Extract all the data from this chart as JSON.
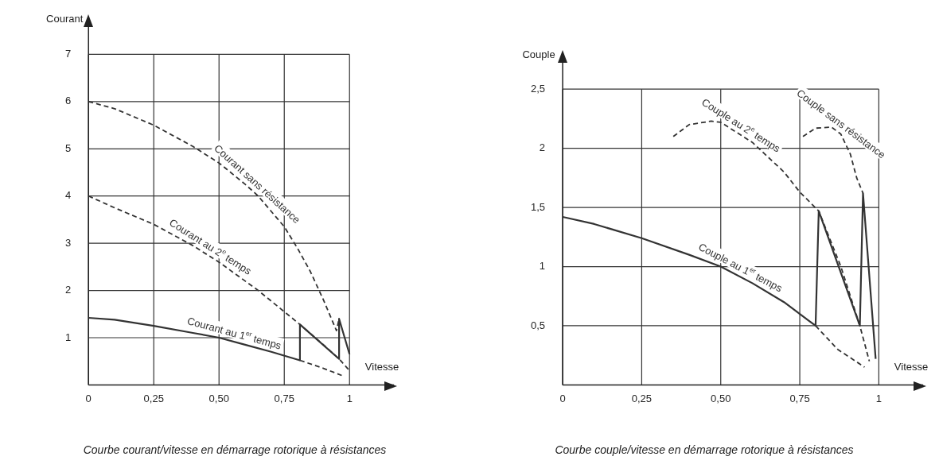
{
  "chart_data": [
    {
      "type": "line",
      "title": "Courbe courant/vitesse en démarrage rotorique à résistances",
      "xlabel": "Vitesse",
      "ylabel": "Courant",
      "xlim": [
        0,
        1.17
      ],
      "ylim": [
        0,
        7.65
      ],
      "xticks": [
        {
          "value": 0,
          "label": "0"
        },
        {
          "value": 0.25,
          "label": "0,25"
        },
        {
          "value": 0.5,
          "label": "0,50"
        },
        {
          "value": 0.75,
          "label": "0,75"
        },
        {
          "value": 1,
          "label": "1"
        }
      ],
      "yticks": [
        1,
        2,
        3,
        4,
        5,
        6,
        7
      ],
      "grid": true,
      "legend": false,
      "marker": "none",
      "series": [
        {
          "name": "Courant sans résistance",
          "color": "#333333",
          "line_style": "dashed",
          "x": [
            0,
            0.1,
            0.25,
            0.4,
            0.5,
            0.6,
            0.65,
            0.75,
            0.8,
            0.85,
            0.9,
            0.95,
            0.96
          ],
          "values": [
            6,
            5.85,
            5.5,
            5.05,
            4.7,
            4.25,
            4.0,
            3.35,
            2.9,
            2.4,
            1.8,
            1.15,
            1.4
          ]
        },
        {
          "name": "Courant au 2$^{e}$ temps",
          "color": "#333333",
          "line_style": "dashed",
          "x": [
            0,
            0.1,
            0.25,
            0.4,
            0.5,
            0.65,
            0.75,
            0.81,
            0.9,
            0.96,
            1
          ],
          "values": [
            4,
            3.75,
            3.4,
            2.95,
            2.6,
            2.0,
            1.55,
            1.28,
            0.85,
            0.55,
            0.3
          ]
        },
        {
          "name": "Courant au 1$^{er}$ temps",
          "color": "#333333",
          "line_style": "solid",
          "x": [
            0,
            0.1,
            0.25,
            0.4,
            0.5,
            0.6,
            0.7,
            0.81,
            0.81,
            0.96,
            0.96,
            1
          ],
          "values": [
            1.42,
            1.38,
            1.25,
            1.1,
            1.0,
            0.85,
            0.7,
            0.52,
            1.28,
            0.55,
            1.4,
            0.65
          ]
        },
        {
          "color": "#333333",
          "line_style": "dashed",
          "x": [
            0.81,
            0.9,
            0.97
          ],
          "values": [
            0.52,
            0.35,
            0.2
          ]
        }
      ]
    },
    {
      "type": "line",
      "title": "Courbe couple/vitesse en démarrage rotorique à résistances",
      "xlabel": "Vitesse",
      "ylabel": "Couple",
      "xlim": [
        0,
        1.14
      ],
      "ylim": [
        0,
        2.75
      ],
      "xticks": [
        {
          "value": 0,
          "label": "0"
        },
        {
          "value": 0.25,
          "label": "0,25"
        },
        {
          "value": 0.5,
          "label": "0,50"
        },
        {
          "value": 0.75,
          "label": "0,75"
        },
        {
          "value": 1,
          "label": "1"
        }
      ],
      "yticks": [
        {
          "value": 0.5,
          "label": "0,5"
        },
        1,
        {
          "value": 1.5,
          "label": "1,5"
        },
        2,
        {
          "value": 2.5,
          "label": "2,5"
        }
      ],
      "grid": true,
      "legend": false,
      "marker": "none",
      "series": [
        {
          "name": "Couple au 2$^{e}$ temps",
          "color": "#333333",
          "line_style": "dashed",
          "x": [
            0.35,
            0.4,
            0.47,
            0.5,
            0.6,
            0.7,
            0.75,
            0.81,
            0.88,
            0.94,
            0.97
          ],
          "values": [
            2.1,
            2.2,
            2.23,
            2.22,
            2.05,
            1.8,
            1.63,
            1.47,
            1.0,
            0.5,
            0.2
          ]
        },
        {
          "name": "Couple sans résistance",
          "color": "#333333",
          "line_style": "dashed",
          "x": [
            0.76,
            0.8,
            0.85,
            0.88,
            0.91,
            0.93,
            0.95
          ],
          "values": [
            2.1,
            2.17,
            2.18,
            2.12,
            1.95,
            1.75,
            1.62
          ]
        },
        {
          "name": "Couple au 1$^{er}$ temps",
          "color": "#333333",
          "line_style": "solid",
          "x": [
            0,
            0.1,
            0.25,
            0.4,
            0.5,
            0.6,
            0.7,
            0.8,
            0.81,
            0.94,
            0.95,
            0.99
          ],
          "values": [
            1.42,
            1.36,
            1.24,
            1.1,
            1.0,
            0.86,
            0.7,
            0.5,
            1.47,
            0.5,
            1.62,
            0.22
          ]
        },
        {
          "color": "#333333",
          "line_style": "dashed",
          "x": [
            0.8,
            0.87,
            0.955
          ],
          "values": [
            0.5,
            0.3,
            0.15
          ]
        }
      ]
    }
  ]
}
